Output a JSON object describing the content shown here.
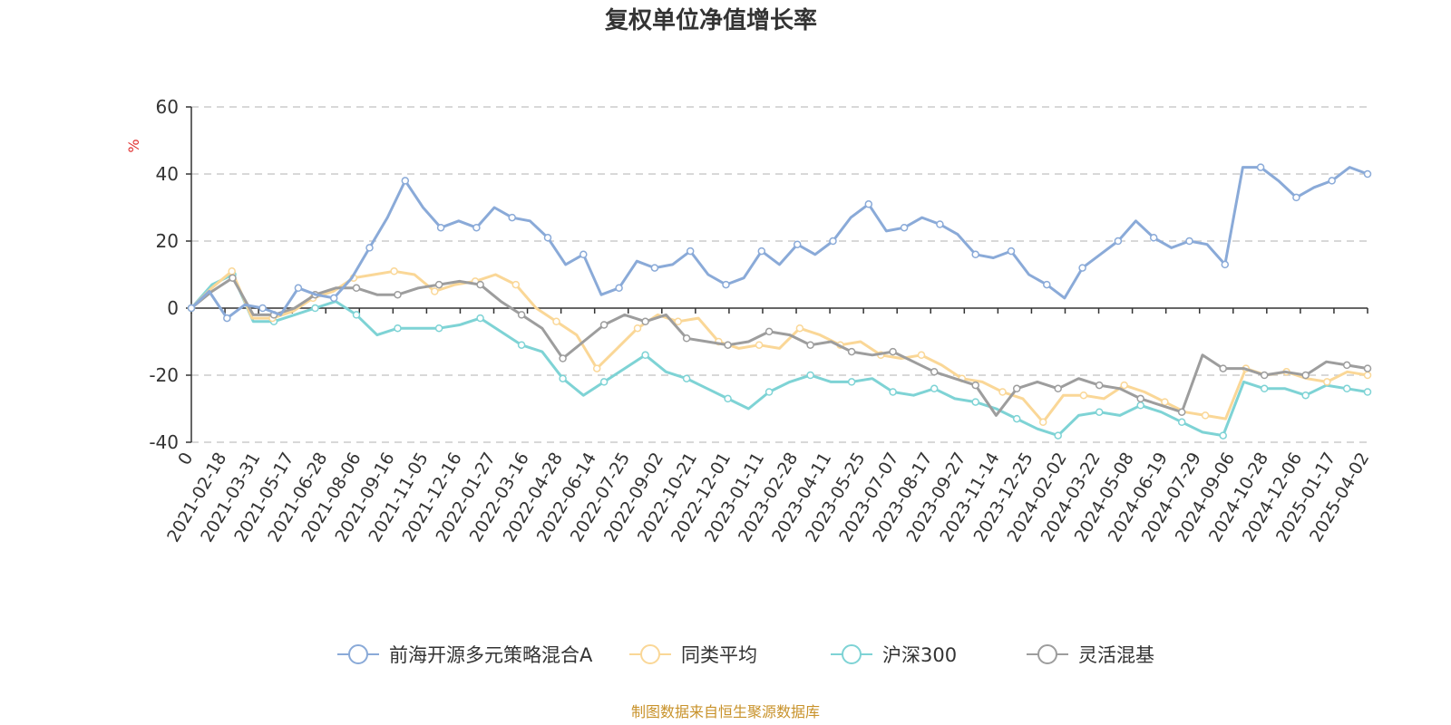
{
  "chart_data": {
    "type": "line",
    "title": "复权单位净值增长率",
    "ylabel": "%",
    "ylim": [
      -40,
      60
    ],
    "yticks": [
      -40,
      -20,
      0,
      20,
      40,
      60
    ],
    "grid": "horizontal-dashed",
    "x_tick_labels": [
      "0",
      "2021-02-18",
      "2021-03-31",
      "2021-05-17",
      "2021-06-28",
      "2021-08-06",
      "2021-09-16",
      "2021-11-05",
      "2021-12-16",
      "2022-01-27",
      "2022-03-16",
      "2022-04-28",
      "2022-06-14",
      "2022-07-25",
      "2022-09-02",
      "2022-10-21",
      "2022-12-01",
      "2023-01-11",
      "2023-02-28",
      "2023-04-11",
      "2023-05-25",
      "2023-07-07",
      "2023-08-17",
      "2023-09-27",
      "2023-11-14",
      "2023-12-25",
      "2024-02-02",
      "2024-03-22",
      "2024-05-08",
      "2024-06-19",
      "2024-07-29",
      "2024-09-06",
      "2024-10-28",
      "2024-12-06",
      "2025-01-17",
      "2025-04-02"
    ],
    "series": [
      {
        "name": "前海开源多元策略混合A",
        "color": "#8aaad8",
        "values": [
          0,
          5,
          -3,
          1,
          0,
          -2,
          6,
          4,
          3,
          9,
          18,
          27,
          38,
          30,
          24,
          26,
          24,
          30,
          27,
          26,
          21,
          13,
          16,
          4,
          6,
          14,
          12,
          13,
          17,
          10,
          7,
          9,
          17,
          13,
          19,
          16,
          20,
          27,
          31,
          23,
          24,
          27,
          25,
          22,
          16,
          15,
          17,
          10,
          7,
          3,
          12,
          16,
          20,
          26,
          21,
          18,
          20,
          19,
          13,
          42,
          42,
          38,
          33,
          36,
          38,
          42,
          40
        ]
      },
      {
        "name": "同类平均",
        "color": "#fad797",
        "values": [
          0,
          6,
          11,
          -3,
          -3,
          -1,
          3,
          5,
          9,
          10,
          11,
          10,
          5,
          7,
          8,
          10,
          7,
          0,
          -4,
          -8,
          -18,
          -12,
          -6,
          -2,
          -4,
          -3,
          -10,
          -12,
          -11,
          -12,
          -6,
          -8,
          -11,
          -10,
          -14,
          -15,
          -14,
          -17,
          -21,
          -22,
          -25,
          -27,
          -34,
          -26,
          -26,
          -27,
          -23,
          -25,
          -28,
          -31,
          -32,
          -33,
          -18,
          -20,
          -19,
          -21,
          -22,
          -19,
          -20
        ]
      },
      {
        "name": "沪深300",
        "color": "#7ed3d5",
        "values": [
          0,
          7,
          10,
          -4,
          -4,
          -2,
          0,
          2,
          -2,
          -8,
          -6,
          -6,
          -6,
          -5,
          -3,
          -7,
          -11,
          -13,
          -21,
          -26,
          -22,
          -18,
          -14,
          -19,
          -21,
          -24,
          -27,
          -30,
          -25,
          -22,
          -20,
          -22,
          -22,
          -21,
          -25,
          -26,
          -24,
          -27,
          -28,
          -30,
          -33,
          -36,
          -38,
          -32,
          -31,
          -32,
          -29,
          -31,
          -34,
          -37,
          -38,
          -22,
          -24,
          -24,
          -26,
          -23,
          -24,
          -25
        ]
      },
      {
        "name": "灵活混基",
        "color": "#9d9d9d",
        "values": [
          0,
          5,
          9,
          -2,
          -2,
          0,
          4,
          6,
          6,
          4,
          4,
          6,
          7,
          8,
          7,
          2,
          -2,
          -6,
          -15,
          -10,
          -5,
          -2,
          -4,
          -2,
          -9,
          -10,
          -11,
          -10,
          -7,
          -8,
          -11,
          -10,
          -13,
          -14,
          -13,
          -16,
          -19,
          -21,
          -23,
          -32,
          -24,
          -22,
          -24,
          -21,
          -23,
          -24,
          -27,
          -29,
          -31,
          -14,
          -18,
          -18,
          -20,
          -19,
          -20,
          -16,
          -17,
          -18
        ]
      }
    ]
  },
  "legend": {
    "items": [
      {
        "label": "前海开源多元策略混合A",
        "color": "#8aaad8"
      },
      {
        "label": "同类平均",
        "color": "#fad797"
      },
      {
        "label": "沪深300",
        "color": "#7ed3d5"
      },
      {
        "label": "灵活混基",
        "color": "#9d9d9d"
      }
    ]
  },
  "source": "制图数据来自恒生聚源数据库"
}
